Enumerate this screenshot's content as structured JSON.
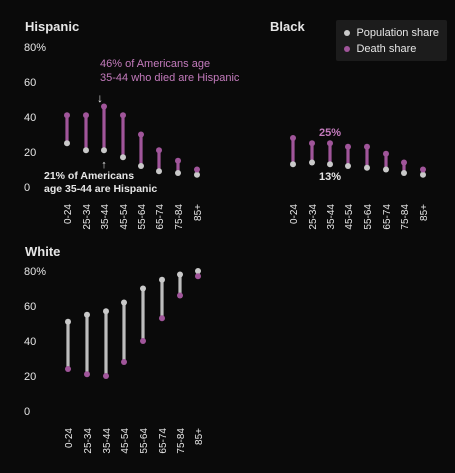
{
  "colors": {
    "background": "#0a0a0a",
    "population": "#c9c9c9",
    "death": "#a0559a",
    "annotation_pink": "#c47bbd",
    "text": "#e6e6e6",
    "connector": "#bdbdbd"
  },
  "legend": {
    "population_label": "Population share",
    "death_label": "Death share",
    "population_icon": "white-dot-icon",
    "death_icon": "purple-dot-icon"
  },
  "chart_data": [
    {
      "type": "dumbbell",
      "title": "Hispanic",
      "categories": [
        "0-24",
        "25-34",
        "35-44",
        "45-54",
        "55-64",
        "65-74",
        "75-84",
        "85+"
      ],
      "series": [
        {
          "name": "Population share",
          "values": [
            25,
            21,
            21,
            17,
            12,
            9,
            8,
            7
          ]
        },
        {
          "name": "Death share",
          "values": [
            41,
            41,
            46,
            41,
            30,
            21,
            15,
            10
          ]
        }
      ],
      "ylim": [
        0,
        80
      ],
      "yticks": [
        "80%",
        "60",
        "40",
        "20",
        "0"
      ],
      "show_y_axis": true,
      "annotations": {
        "death": "46% of Americans age 35-44 who died are Hispanic",
        "population": "21% of Americans age 35-44 are Hispanic"
      }
    },
    {
      "type": "dumbbell",
      "title": "Black",
      "categories": [
        "0-24",
        "25-34",
        "35-44",
        "45-54",
        "55-64",
        "65-74",
        "75-84",
        "85+"
      ],
      "series": [
        {
          "name": "Population share",
          "values": [
            13,
            14,
            13,
            12,
            11,
            10,
            8,
            7
          ]
        },
        {
          "name": "Death share",
          "values": [
            28,
            25,
            25,
            23,
            23,
            19,
            14,
            10
          ]
        }
      ],
      "ylim": [
        0,
        80
      ],
      "show_y_axis": false,
      "annotations": {
        "death": "25%",
        "population": "13%"
      }
    },
    {
      "type": "dumbbell",
      "title": "White",
      "categories": [
        "0-24",
        "25-34",
        "35-44",
        "45-54",
        "55-64",
        "65-74",
        "75-84",
        "85+"
      ],
      "series": [
        {
          "name": "Population share",
          "values": [
            51,
            55,
            57,
            62,
            70,
            75,
            78,
            80
          ]
        },
        {
          "name": "Death share",
          "values": [
            24,
            21,
            20,
            28,
            40,
            53,
            66,
            77
          ]
        }
      ],
      "ylim": [
        0,
        80
      ],
      "yticks": [
        "80%",
        "60",
        "40",
        "20",
        "0"
      ],
      "show_y_axis": true
    }
  ]
}
